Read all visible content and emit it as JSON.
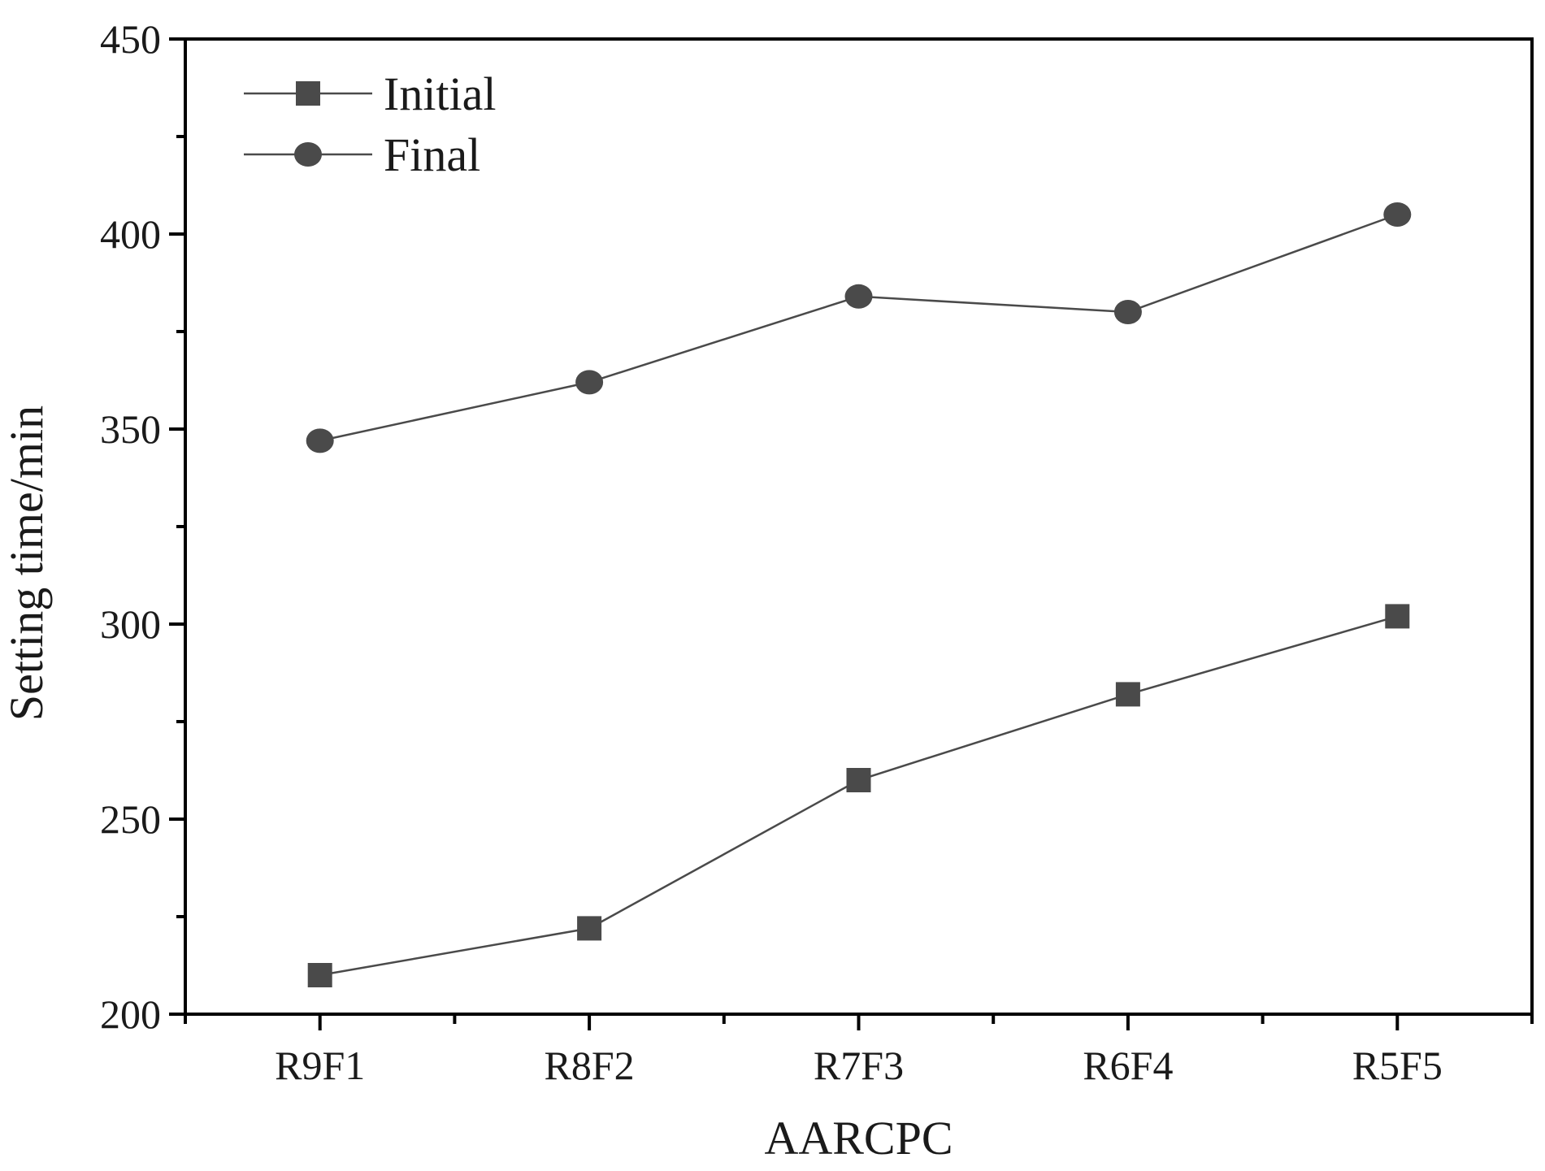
{
  "chart_data": {
    "type": "line",
    "xlabel": "AARCPC",
    "ylabel": "Setting time/min",
    "categories": [
      "R9F1",
      "R8F2",
      "R7F3",
      "R6F4",
      "R5F5"
    ],
    "ylim": [
      200,
      450
    ],
    "yticks": [
      200,
      250,
      300,
      350,
      400,
      450
    ],
    "legend_position": "top-left",
    "grid": false,
    "series": [
      {
        "name": "Initial",
        "marker": "square",
        "color": "#4a4a4a",
        "values": [
          210,
          222,
          260,
          282,
          302
        ]
      },
      {
        "name": "Final",
        "marker": "circle",
        "color": "#4a4a4a",
        "values": [
          347,
          362,
          384,
          380,
          405
        ]
      }
    ]
  }
}
